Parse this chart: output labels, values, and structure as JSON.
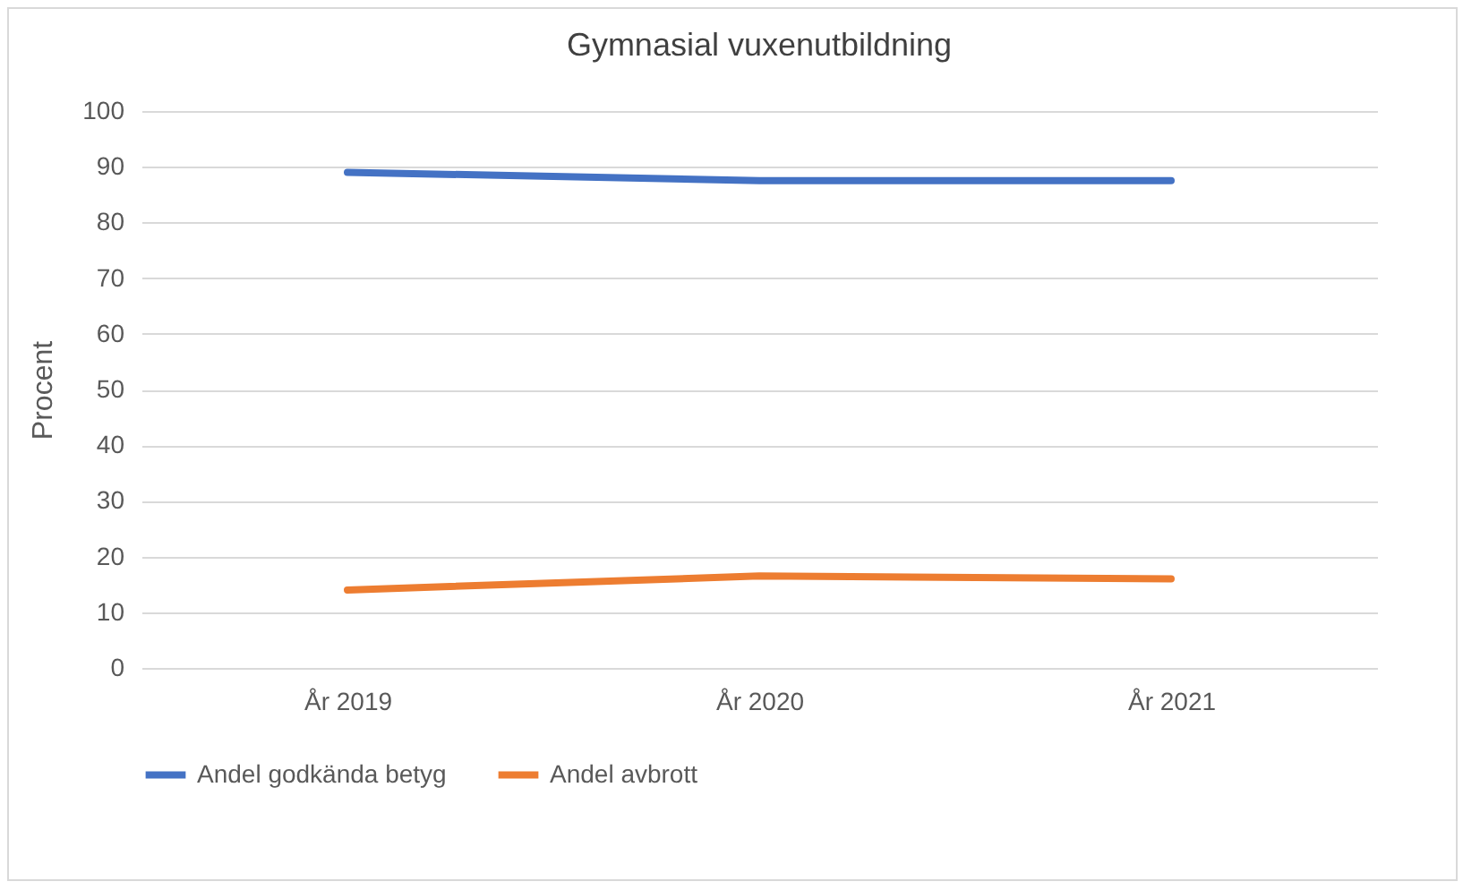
{
  "chart_data": {
    "type": "line",
    "title": "Gymnasial vuxenutbildning",
    "ylabel": "Procent",
    "categories": [
      "År 2019",
      "År 2020",
      "År 2021"
    ],
    "series": [
      {
        "name": "Andel godkända betyg",
        "color": "#4472c4",
        "values": [
          89,
          87.5,
          87.5
        ]
      },
      {
        "name": "Andel avbrott",
        "color": "#ed7d31",
        "values": [
          14,
          16.5,
          16
        ]
      }
    ],
    "ylim": [
      0,
      100
    ],
    "yticks": [
      0,
      10,
      20,
      30,
      40,
      50,
      60,
      70,
      80,
      90,
      100
    ],
    "grid": "y",
    "legend": "bottom",
    "marker": "none",
    "line_style": "solid"
  }
}
